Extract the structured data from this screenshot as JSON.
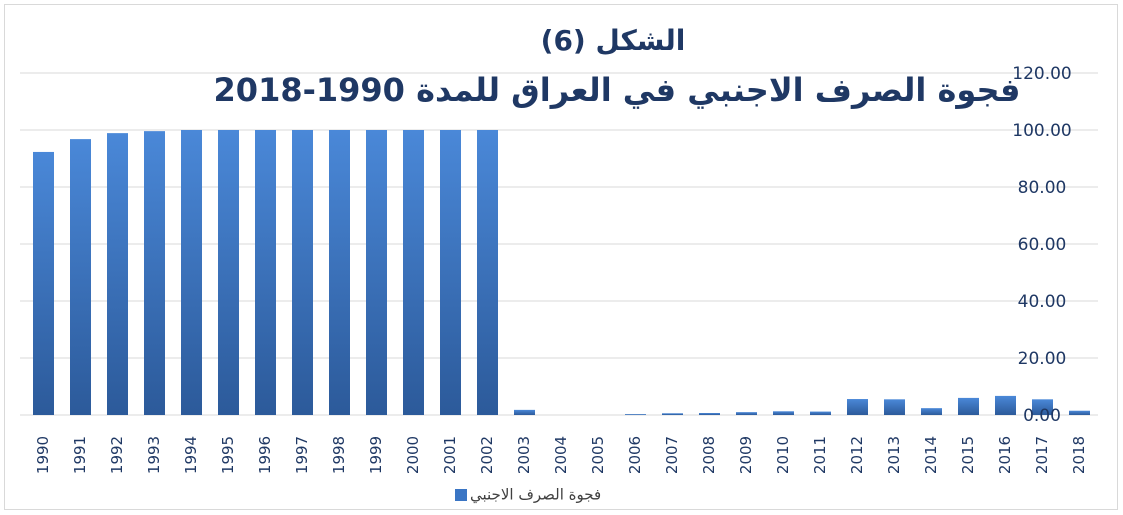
{
  "chart_data": {
    "type": "bar",
    "title": "الشكل (6)",
    "subtitle": "فجوة الصرف الاجنبي في العراق للمدة 1990-2018",
    "categories": [
      "1990",
      "1991",
      "1992",
      "1993",
      "1994",
      "1995",
      "1996",
      "1997",
      "1998",
      "1999",
      "2000",
      "2001",
      "2002",
      "2003",
      "2004",
      "2005",
      "2006",
      "2007",
      "2008",
      "2009",
      "2010",
      "2011",
      "2012",
      "2013",
      "2014",
      "2015",
      "2016",
      "2017",
      "2018"
    ],
    "series": [
      {
        "name": "فجوة الصرف الاجنبي",
        "color": "#3a75c4",
        "values": [
          92.3,
          96.8,
          98.9,
          99.6,
          100,
          100,
          100,
          100,
          100,
          100,
          100,
          100,
          100,
          1.8,
          0,
          0,
          0.3,
          0.6,
          0.7,
          1.0,
          1.3,
          1.2,
          5.6,
          5.5,
          2.4,
          6.0,
          6.7,
          5.5,
          1.5
        ]
      }
    ],
    "ylim": [
      0,
      120
    ],
    "yticks": [
      {
        "value": 0,
        "label": "0.00"
      },
      {
        "value": 20,
        "label": "20.00"
      },
      {
        "value": 40,
        "label": "40.00"
      },
      {
        "value": 60,
        "label": "60.00"
      },
      {
        "value": 80,
        "label": "80.00"
      },
      {
        "value": 100,
        "label": "100.00"
      },
      {
        "value": 120,
        "label": "120.00"
      }
    ],
    "grid": true
  }
}
